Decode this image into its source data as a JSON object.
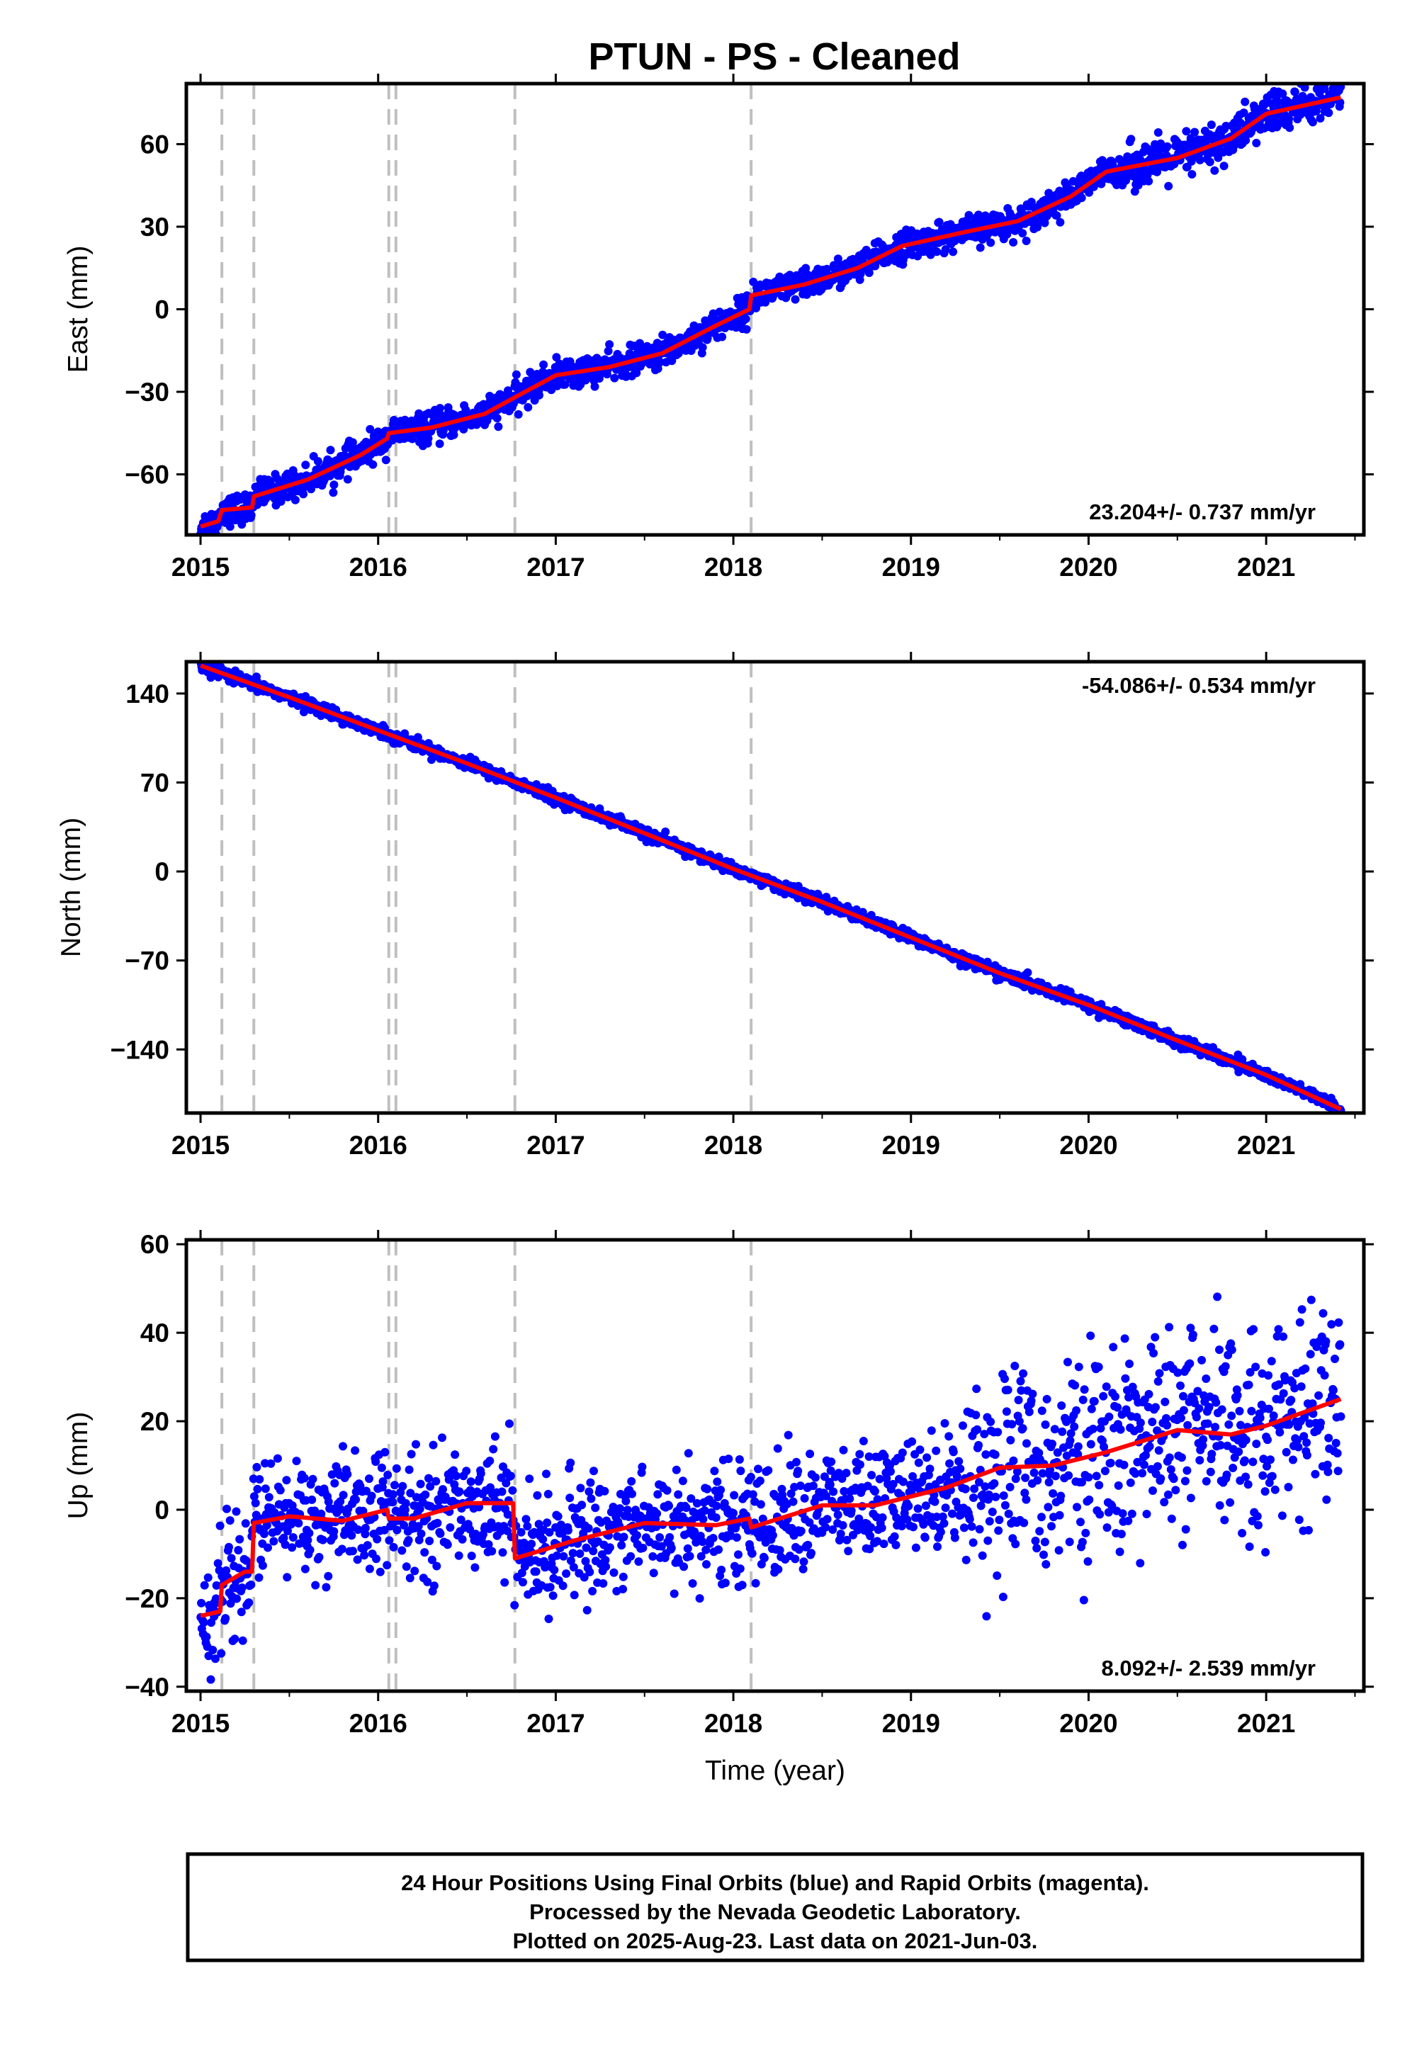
{
  "title": "PTUN  - PS - Cleaned",
  "colors": {
    "data": "#0000ff",
    "model": "#ff0000",
    "events": "#bfbfbf",
    "frame": "#000000"
  },
  "footer": {
    "line1": "24 Hour Positions Using Final Orbits (blue) and Rapid Orbits (magenta).",
    "line2": "Processed by the Nevada Geodetic Laboratory.",
    "line3": "Plotted on 2025-Aug-23. Last data on 2021-Jun-03."
  },
  "chart_data": [
    {
      "type": "scatter",
      "id": "east",
      "ylabel": "East (mm)",
      "xlabel": "",
      "xlim": [
        2014.92,
        2021.55
      ],
      "ylim": [
        -82,
        82
      ],
      "xticks": [
        "2015",
        "2016",
        "2017",
        "2018",
        "2019",
        "2020",
        "2021"
      ],
      "yticks": [
        "60",
        "30",
        "0",
        "−30",
        "−60"
      ],
      "ytick_values": [
        60,
        30,
        0,
        -30,
        -60
      ],
      "rate_label": "23.204+/- 0.737 mm/yr",
      "rate_position": "bottom-right",
      "event_lines": [
        2015.12,
        2015.3,
        2016.06,
        2016.1,
        2016.77,
        2018.1
      ],
      "data_span": [
        2015.0,
        2021.42
      ],
      "model_line": {
        "x": [
          2015.0,
          2015.1,
          2015.12,
          2015.29,
          2015.3,
          2015.6,
          2015.9,
          2016.05,
          2016.06,
          2016.3,
          2016.6,
          2016.77,
          2017.0,
          2017.3,
          2017.6,
          2017.9,
          2018.09,
          2018.1,
          2018.4,
          2018.7,
          2018.95,
          2019.3,
          2019.6,
          2019.9,
          2020.1,
          2020.5,
          2020.8,
          2021.0,
          2021.42
        ],
        "y": [
          -79,
          -77,
          -73,
          -72,
          -68,
          -62,
          -53,
          -47,
          -45,
          -43,
          -38,
          -32,
          -24,
          -21,
          -16,
          -6,
          0,
          5,
          9,
          15,
          23,
          28,
          32,
          41,
          50,
          55,
          62,
          71,
          77
        ]
      },
      "scatter_sigma": 2.6
    },
    {
      "type": "scatter",
      "id": "north",
      "ylabel": "North (mm)",
      "xlabel": "",
      "xlim": [
        2014.92,
        2021.55
      ],
      "ylim": [
        -190,
        165
      ],
      "xticks": [
        "2015",
        "2016",
        "2017",
        "2018",
        "2019",
        "2020",
        "2021"
      ],
      "yticks": [
        "140",
        "70",
        "0",
        "−70",
        "−140"
      ],
      "ytick_values": [
        140,
        70,
        0,
        -70,
        -140
      ],
      "rate_label": "-54.086+/- 0.534 mm/yr",
      "rate_position": "top-right",
      "event_lines": [
        2015.12,
        2015.3,
        2016.06,
        2016.1,
        2016.77,
        2018.1
      ],
      "data_span": [
        2015.0,
        2021.42
      ],
      "model_line": {
        "x": [
          2015.0,
          2015.5,
          2016.0,
          2016.5,
          2017.0,
          2017.5,
          2018.0,
          2018.5,
          2019.0,
          2019.5,
          2020.0,
          2020.5,
          2021.0,
          2021.42
        ],
        "y": [
          162,
          137,
          111,
          85,
          58,
          30,
          2,
          -24,
          -52,
          -80,
          -105,
          -133,
          -160,
          -187
        ]
      },
      "scatter_sigma": 2.2
    },
    {
      "type": "scatter",
      "id": "up",
      "ylabel": "Up (mm)",
      "xlabel": "Time (year)",
      "xlim": [
        2014.92,
        2021.55
      ],
      "ylim": [
        -41,
        61
      ],
      "xticks": [
        "2015",
        "2016",
        "2017",
        "2018",
        "2019",
        "2020",
        "2021"
      ],
      "yticks": [
        "60",
        "40",
        "20",
        "0",
        "−20",
        "−40"
      ],
      "ytick_values": [
        60,
        40,
        20,
        0,
        -20,
        -40
      ],
      "rate_label": "8.092+/- 2.539 mm/yr",
      "rate_position": "bottom-right",
      "event_lines": [
        2015.12,
        2015.3,
        2016.06,
        2016.1,
        2016.77,
        2018.1
      ],
      "data_span": [
        2015.0,
        2021.42
      ],
      "model_line": {
        "x": [
          2015.0,
          2015.11,
          2015.12,
          2015.25,
          2015.29,
          2015.3,
          2015.5,
          2015.8,
          2016.05,
          2016.06,
          2016.2,
          2016.5,
          2016.76,
          2016.77,
          2017.1,
          2017.5,
          2017.9,
          2018.09,
          2018.1,
          2018.5,
          2018.8,
          2019.2,
          2019.5,
          2019.8,
          2020.1,
          2020.5,
          2020.8,
          2021.0,
          2021.42
        ],
        "y": [
          -24,
          -23,
          -17,
          -14,
          -14,
          -3,
          -1.5,
          -2.5,
          0,
          -2,
          -2,
          1.5,
          1.5,
          -11,
          -7,
          -3,
          -3.5,
          -2,
          -4,
          1,
          1,
          5,
          9.5,
          10,
          13,
          18,
          17,
          19,
          25
        ]
      },
      "scatter_sigma": 6.5
    }
  ]
}
